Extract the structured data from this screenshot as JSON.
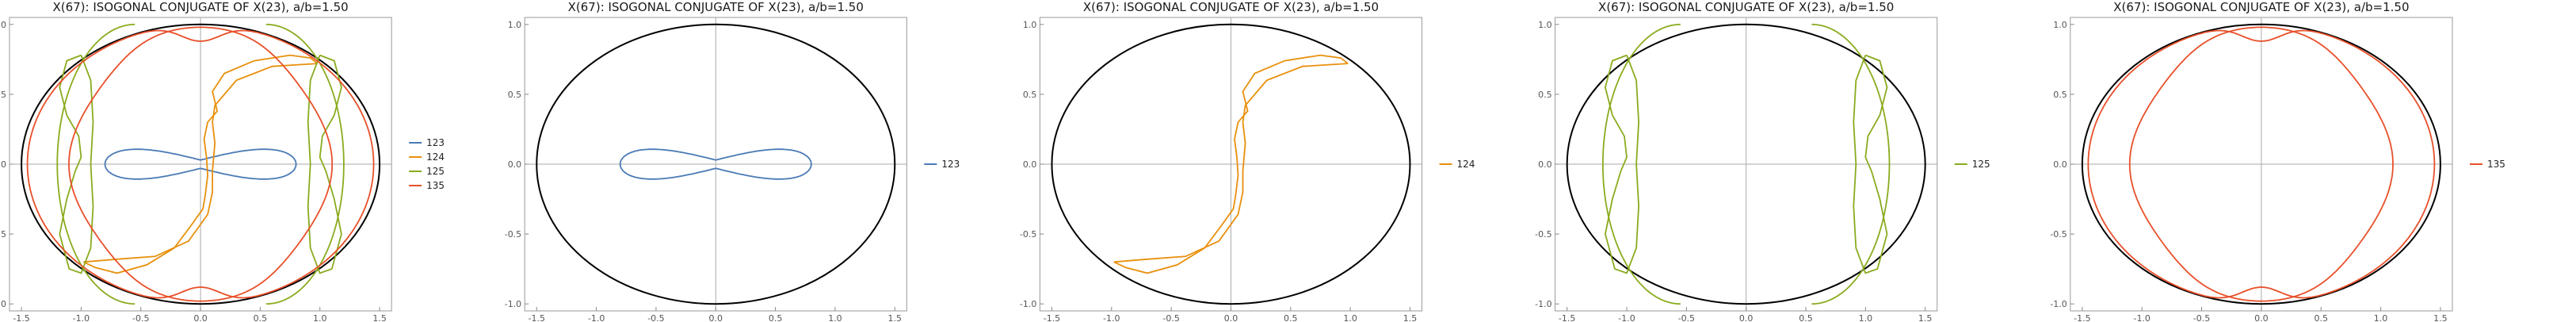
{
  "chart_data": [
    {
      "type": "line",
      "title": "X(67): ISOGONAL CONJUGATE OF X(23), a/b=1.50",
      "xlim": [
        -1.6,
        1.6
      ],
      "ylim": [
        -1.05,
        1.05
      ],
      "xticks": [
        "-1.5",
        "-1.0",
        "-0.5",
        "0.0",
        "0.5",
        "1.0",
        "1.5"
      ],
      "yticks": [
        "-1.0",
        "-0.5",
        "0.0",
        "0.5",
        "1.0"
      ],
      "grid": false,
      "legend": "right",
      "ellipse": {
        "a": 1.5,
        "b": 1.0,
        "color": "#000000"
      },
      "series": [
        {
          "name": "123",
          "color": "#4a7ab5",
          "curve": "peanut"
        },
        {
          "name": "124",
          "color": "#e8900c",
          "curve": "s-curve"
        },
        {
          "name": "125",
          "color": "#8aab1e",
          "curve": "side-loops"
        },
        {
          "name": "135",
          "color": "#e8502a",
          "curve": "outer-rings"
        }
      ]
    },
    {
      "type": "line",
      "title": "X(67): ISOGONAL CONJUGATE OF X(23), a/b=1.50",
      "xlim": [
        -1.6,
        1.6
      ],
      "ylim": [
        -1.05,
        1.05
      ],
      "xticks": [
        "-1.5",
        "-1.0",
        "-0.5",
        "0.0",
        "0.5",
        "1.0",
        "1.5"
      ],
      "yticks": [
        "-1.0",
        "-0.5",
        "0.0",
        "0.5",
        "1.0"
      ],
      "grid": false,
      "legend": "right",
      "ellipse": {
        "a": 1.5,
        "b": 1.0,
        "color": "#000000"
      },
      "series": [
        {
          "name": "123",
          "color": "#4a7ab5",
          "curve": "peanut"
        }
      ]
    },
    {
      "type": "line",
      "title": "X(67): ISOGONAL CONJUGATE OF X(23), a/b=1.50",
      "xlim": [
        -1.6,
        1.6
      ],
      "ylim": [
        -1.05,
        1.05
      ],
      "xticks": [
        "-1.5",
        "-1.0",
        "-0.5",
        "0.0",
        "0.5",
        "1.0",
        "1.5"
      ],
      "yticks": [
        "-1.0",
        "-0.5",
        "0.0",
        "0.5",
        "1.0"
      ],
      "grid": false,
      "legend": "right",
      "ellipse": {
        "a": 1.5,
        "b": 1.0,
        "color": "#000000"
      },
      "series": [
        {
          "name": "124",
          "color": "#e8900c",
          "curve": "s-curve"
        }
      ]
    },
    {
      "type": "line",
      "title": "X(67): ISOGONAL CONJUGATE OF X(23), a/b=1.50",
      "xlim": [
        -1.6,
        1.6
      ],
      "ylim": [
        -1.05,
        1.05
      ],
      "xticks": [
        "-1.5",
        "-1.0",
        "-0.5",
        "0.0",
        "0.5",
        "1.0",
        "1.5"
      ],
      "yticks": [
        "-1.0",
        "-0.5",
        "0.0",
        "0.5",
        "1.0"
      ],
      "grid": false,
      "legend": "right",
      "ellipse": {
        "a": 1.5,
        "b": 1.0,
        "color": "#000000"
      },
      "series": [
        {
          "name": "125",
          "color": "#8aab1e",
          "curve": "side-loops"
        }
      ]
    },
    {
      "type": "line",
      "title": "X(67): ISOGONAL CONJUGATE OF X(23), a/b=1.50",
      "xlim": [
        -1.6,
        1.6
      ],
      "ylim": [
        -1.05,
        1.05
      ],
      "xticks": [
        "-1.5",
        "-1.0",
        "-0.5",
        "0.0",
        "0.5",
        "1.0",
        "1.5"
      ],
      "yticks": [
        "-1.0",
        "-0.5",
        "0.0",
        "0.5",
        "1.0"
      ],
      "grid": false,
      "legend": "right",
      "ellipse": {
        "a": 1.5,
        "b": 1.0,
        "color": "#000000"
      },
      "series": [
        {
          "name": "135",
          "color": "#e8502a",
          "curve": "outer-rings"
        }
      ]
    }
  ]
}
